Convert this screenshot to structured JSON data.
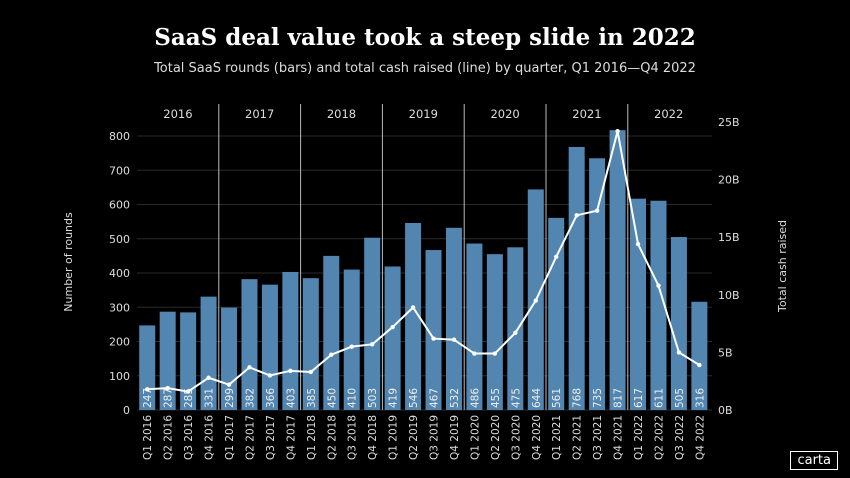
{
  "title": "SaaS deal value took a steep slide in 2022",
  "subtitle": "Total SaaS rounds (bars) and total cash raised (line) by quarter, Q1 2016—Q4 2022",
  "logo": "carta",
  "chart_data": {
    "type": "bar+line",
    "categories": [
      "Q1 2016",
      "Q2 2016",
      "Q3 2016",
      "Q4 2016",
      "Q1 2017",
      "Q2 2017",
      "Q3 2017",
      "Q4 2017",
      "Q1 2018",
      "Q2 2018",
      "Q3 2018",
      "Q4 2018",
      "Q1 2019",
      "Q2 2019",
      "Q3 2019",
      "Q4 2019",
      "Q1 2020",
      "Q2 2020",
      "Q3 2020",
      "Q4 2020",
      "Q1 2021",
      "Q2 2021",
      "Q3 2021",
      "Q4 2021",
      "Q1 2022",
      "Q2 2022",
      "Q3 2022",
      "Q4 2022"
    ],
    "years": [
      "2016",
      "2017",
      "2018",
      "2019",
      "2020",
      "2021",
      "2022"
    ],
    "bars": {
      "axis": "left",
      "values": [
        247,
        287,
        285,
        331,
        299,
        382,
        366,
        403,
        385,
        450,
        410,
        503,
        419,
        546,
        467,
        532,
        486,
        455,
        475,
        644,
        561,
        768,
        735,
        817,
        617,
        611,
        505,
        316
      ],
      "color": "#5286b0"
    },
    "line": {
      "axis": "right",
      "unit": "B",
      "values": [
        1.8,
        1.9,
        1.6,
        2.8,
        2.2,
        3.7,
        3.0,
        3.4,
        3.3,
        4.8,
        5.5,
        5.7,
        7.2,
        8.9,
        6.2,
        6.1,
        4.9,
        4.9,
        6.7,
        9.5,
        13.3,
        16.9,
        17.3,
        24.2,
        14.4,
        10.8,
        5.0,
        3.9
      ],
      "color": "#ffffff"
    },
    "ylabel_left": "Number of rounds",
    "ylabel_right": "Total cash raised",
    "ylim_left": [
      0,
      800
    ],
    "yticks_left": [
      "0",
      "100",
      "200",
      "300",
      "400",
      "500",
      "600",
      "700",
      "800"
    ],
    "ylim_right": [
      0,
      25
    ],
    "yticks_right": [
      "0B",
      "5B",
      "10B",
      "15B",
      "20B",
      "25B"
    ],
    "grid": true
  }
}
